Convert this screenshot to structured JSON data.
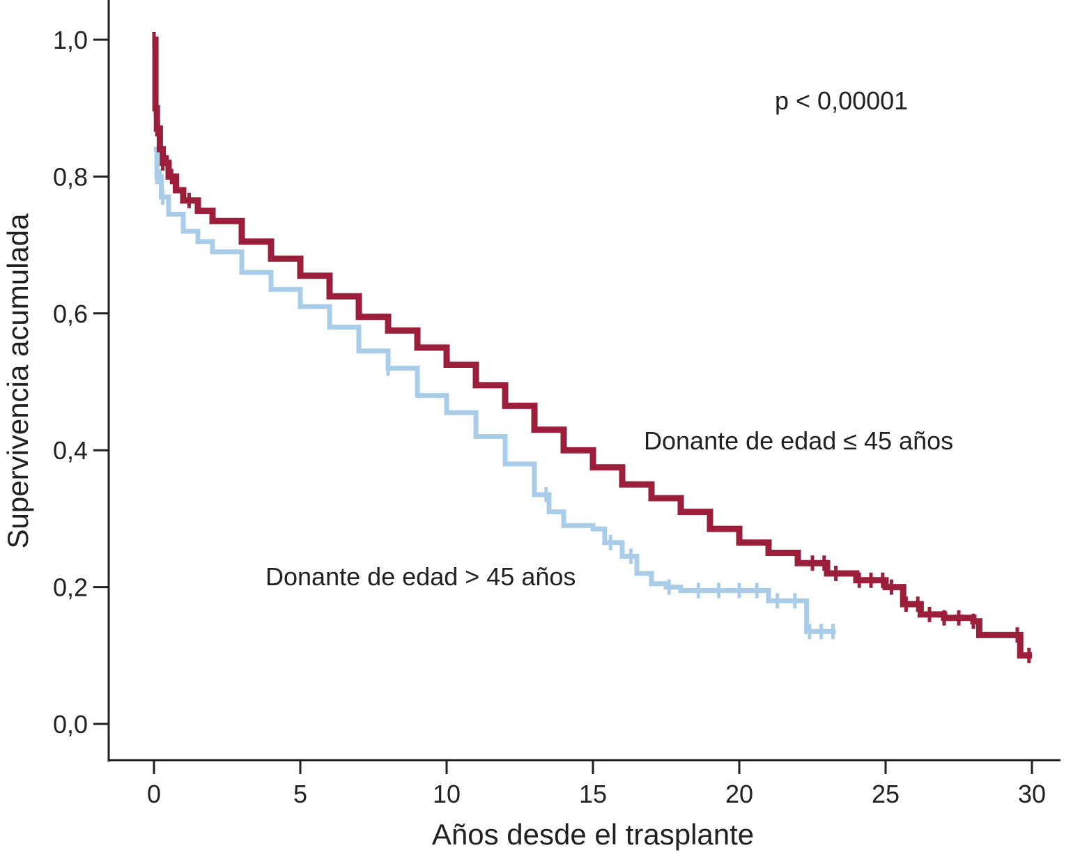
{
  "chart_data": {
    "type": "line",
    "subtype": "kaplan-meier step curves with censor marks",
    "xlabel": "Años desde el trasplante",
    "ylabel": "Supervivencia acumulada",
    "xlim": [
      0,
      30
    ],
    "ylim": [
      0,
      1
    ],
    "x_ticks": [
      "0",
      "5",
      "10",
      "15",
      "20",
      "25",
      "30"
    ],
    "y_ticks": [
      "0,0",
      "0,2",
      "0,4",
      "0,6",
      "0,8",
      "1,0"
    ],
    "grid": false,
    "annotation": "p < 0,00001",
    "series": [
      {
        "name": "Donante de edad ≤ 45 años",
        "color": "#9b1e3a",
        "x": [
          0,
          0.05,
          0.1,
          0.2,
          0.3,
          0.5,
          0.75,
          1,
          1.5,
          2,
          3,
          4,
          5,
          6,
          7,
          8,
          9,
          10,
          11,
          12,
          13,
          14,
          15,
          16,
          17,
          18,
          19,
          20,
          21,
          22,
          23,
          24,
          25,
          25.6,
          26.2,
          27,
          28,
          28.2,
          29.2,
          29.6,
          30
        ],
        "y": [
          1.0,
          0.9,
          0.87,
          0.84,
          0.82,
          0.8,
          0.78,
          0.765,
          0.75,
          0.735,
          0.705,
          0.68,
          0.655,
          0.625,
          0.595,
          0.575,
          0.55,
          0.525,
          0.495,
          0.465,
          0.43,
          0.4,
          0.375,
          0.35,
          0.33,
          0.31,
          0.285,
          0.265,
          0.25,
          0.235,
          0.22,
          0.21,
          0.2,
          0.175,
          0.16,
          0.155,
          0.15,
          0.13,
          0.13,
          0.1,
          0.1
        ],
        "censor_marks": [
          0,
          0.05,
          0.1,
          0.15,
          0.3,
          0.45,
          0.6,
          1.2,
          22.5,
          22.9,
          23.3,
          24.1,
          24.5,
          24.9,
          25.2,
          25.7,
          26.1,
          26.5,
          27.0,
          27.5,
          28.0,
          29.5,
          29.9
        ]
      },
      {
        "name": "Donante de edad > 45 años",
        "color": "#a9cce9",
        "x": [
          0,
          0.1,
          0.25,
          0.5,
          1,
          1.5,
          2,
          3,
          4,
          5,
          6,
          7,
          8,
          9,
          10,
          11,
          12,
          13,
          13.5,
          14,
          15,
          15.4,
          16,
          16.5,
          17,
          17.5,
          18,
          19,
          20,
          21,
          22.1,
          22.3,
          23.3
        ],
        "y": [
          0.84,
          0.8,
          0.77,
          0.745,
          0.72,
          0.705,
          0.69,
          0.66,
          0.635,
          0.61,
          0.58,
          0.545,
          0.52,
          0.48,
          0.455,
          0.42,
          0.38,
          0.335,
          0.31,
          0.29,
          0.285,
          0.265,
          0.245,
          0.22,
          0.205,
          0.2,
          0.195,
          0.195,
          0.195,
          0.18,
          0.18,
          0.135,
          0.135
        ],
        "censor_marks": [
          0.1,
          0.2,
          0.3,
          8,
          13.4,
          15.6,
          16.3,
          17.6,
          18.6,
          19.3,
          20.0,
          20.6,
          21.3,
          21.9,
          22.4,
          22.8,
          23.2
        ]
      }
    ]
  }
}
